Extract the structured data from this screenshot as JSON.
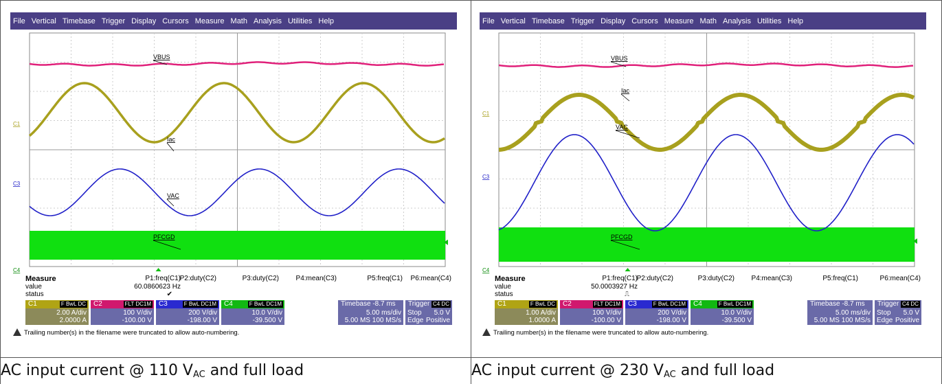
{
  "menu": [
    "File",
    "Vertical",
    "Timebase",
    "Trigger",
    "Display",
    "Cursors",
    "Measure",
    "Math",
    "Analysis",
    "Utilities",
    "Help"
  ],
  "left": {
    "labels": {
      "vbus": "VBUS",
      "iac": "Iac",
      "vac": "VAC",
      "pfcgd": "PFCGD",
      "c1": "C1",
      "c3": "C3",
      "c4": "C4"
    },
    "measure": {
      "heading": "Measure",
      "value_label": "value",
      "status_label": "status",
      "params": [
        "P1:freq(C1)",
        "P2:duty(C2)",
        "P3:duty(C2)",
        "P4:mean(C3)",
        "P5:freq(C1)",
        "P6:mean(C4)"
      ],
      "p1_value": "60.0860623",
      "p1_unit": "Hz",
      "p1_status": "✔"
    },
    "channels": [
      {
        "name": "C1",
        "badge": "F BwL DC",
        "vdiv": "2.00 A/div",
        "offset": "2.0000 A",
        "color": "#a8a01e"
      },
      {
        "name": "C2",
        "badge": "FLT DC1M",
        "vdiv": "100 V/div",
        "offset": "-100.00 V",
        "color": "#d0186e"
      },
      {
        "name": "C3",
        "badge": "F BwL DC1M",
        "vdiv": "200 V/div",
        "offset": "-198.00 V",
        "color": "#2828d0"
      },
      {
        "name": "C4",
        "badge": "F BwL DC1M",
        "vdiv": "10.0 V/div",
        "offset": "-39.500 V",
        "color": "#18c818"
      }
    ],
    "timebase": {
      "label": "Timebase",
      "delay": "-8.7 ms",
      "div": "5.00 ms/div",
      "rate": "5.00 MS  100 MS/s"
    },
    "trigger": {
      "label": "Trigger",
      "badge": "C4 DC",
      "mode": "Stop",
      "level": "5.0 V",
      "type": "Edge",
      "slope": "Positive"
    },
    "warning": "Trailing number(s) in the filename were truncated to allow auto-numbering.",
    "caption_pre": "AC input current @ 110 V",
    "caption_sub": "AC",
    "caption_post": " and full load"
  },
  "right": {
    "labels": {
      "vbus": "VBUS",
      "iac": "Iac",
      "vac": "VAC",
      "pfcgd": "PFCGD",
      "c1": "C1",
      "c3": "C3",
      "c4": "C4"
    },
    "measure": {
      "heading": "Measure",
      "value_label": "value",
      "status_label": "status",
      "params": [
        "P1:freq(C1)",
        "P2:duty(C2)",
        "P3:duty(C2)",
        "P4:mean(C3)",
        "P5:freq(C1)",
        "P6:mean(C4)"
      ],
      "p1_value": "50.0003927",
      "p1_unit": "Hz",
      "p1_status": "⎍"
    },
    "channels": [
      {
        "name": "C1",
        "badge": "F BwL DC",
        "vdiv": "1.00 A/div",
        "offset": "1.0000 A",
        "color": "#a8a01e"
      },
      {
        "name": "C2",
        "badge": "FLT DC1M",
        "vdiv": "100 V/div",
        "offset": "-100.00 V",
        "color": "#d0186e"
      },
      {
        "name": "C3",
        "badge": "F BwL DC1M",
        "vdiv": "200 V/div",
        "offset": "-198.00 V",
        "color": "#2828d0"
      },
      {
        "name": "C4",
        "badge": "F BwL DC1M",
        "vdiv": "10.0 V/div",
        "offset": "-39.500 V",
        "color": "#18c818"
      }
    ],
    "timebase": {
      "label": "Timebase",
      "delay": "-8.7 ms",
      "div": "5.00 ms/div",
      "rate": "5.00 MS  100 MS/s"
    },
    "trigger": {
      "label": "Trigger",
      "badge": "C4 DC",
      "mode": "Stop",
      "level": "5.0 V",
      "type": "Edge",
      "slope": "Positive"
    },
    "warning": "Trailing number(s) in the filename were truncated to allow auto-numbering.",
    "caption_pre": "AC input current @ 230 V",
    "caption_sub": "AC",
    "caption_post": " and full load"
  },
  "colors": {
    "vbus": "#e0207a",
    "iac": "#a8a01e",
    "vac": "#2020c8",
    "pfcgd": "#10e010",
    "menubar": "#4a3f85"
  }
}
